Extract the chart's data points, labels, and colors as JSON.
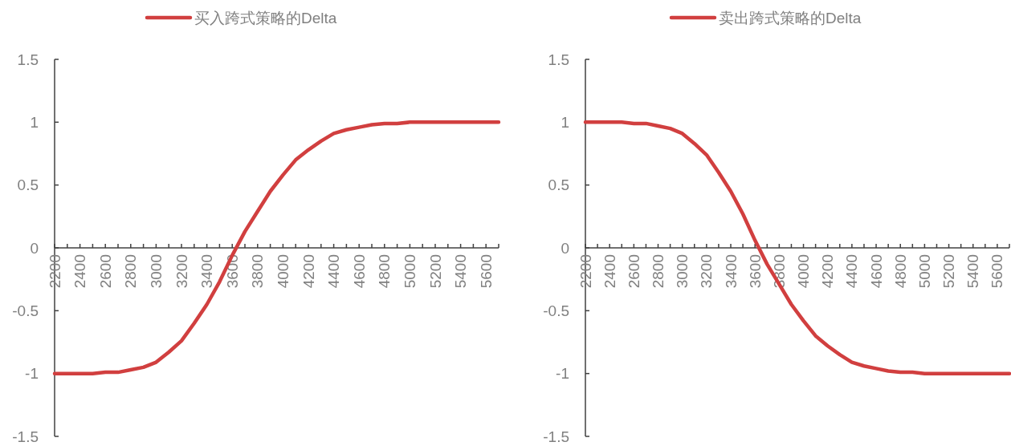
{
  "chart_data": [
    {
      "type": "line",
      "legend": "top",
      "categories": [
        "2200",
        null,
        "2400",
        null,
        "2600",
        null,
        "2800",
        null,
        "3000",
        null,
        "3200",
        null,
        "3400",
        null,
        "3600",
        null,
        "3800",
        null,
        "4000",
        null,
        "4200",
        null,
        "4400",
        null,
        "4600",
        null,
        "4800",
        null,
        "5000",
        null,
        "5200",
        null,
        "5400",
        null,
        "5600",
        null
      ],
      "series": [
        {
          "name": "买入跨式策略的Delta",
          "color": "#d13f3f",
          "values": [
            -1,
            -1,
            -1,
            -1,
            -0.99,
            -0.99,
            -0.97,
            -0.95,
            -0.91,
            -0.83,
            -0.74,
            -0.6,
            -0.45,
            -0.27,
            -0.06,
            0.13,
            0.29,
            0.45,
            0.58,
            0.7,
            0.78,
            0.85,
            0.91,
            0.94,
            0.96,
            0.98,
            0.99,
            0.99,
            1,
            1,
            1,
            1,
            1,
            1,
            1,
            1
          ]
        }
      ],
      "ylim": [
        -1.5,
        1.5
      ],
      "yticks": [
        -1.5,
        -1,
        -0.5,
        0,
        0.5,
        1,
        1.5
      ]
    },
    {
      "type": "line",
      "legend": "top",
      "categories": [
        "2200",
        null,
        "2400",
        null,
        "2600",
        null,
        "2800",
        null,
        "3000",
        null,
        "3200",
        null,
        "3400",
        null,
        "3600",
        null,
        "3800",
        null,
        "4000",
        null,
        "4200",
        null,
        "4400",
        null,
        "4600",
        null,
        "4800",
        null,
        "5000",
        null,
        "5200",
        null,
        "5400",
        null,
        "5600",
        null
      ],
      "series": [
        {
          "name": "卖出跨式策略的Delta",
          "color": "#d13f3f",
          "values": [
            1,
            1,
            1,
            1,
            0.99,
            0.99,
            0.97,
            0.95,
            0.91,
            0.83,
            0.74,
            0.6,
            0.45,
            0.27,
            0.06,
            -0.13,
            -0.29,
            -0.45,
            -0.58,
            -0.7,
            -0.78,
            -0.85,
            -0.91,
            -0.94,
            -0.96,
            -0.98,
            -0.99,
            -0.99,
            -1,
            -1,
            -1,
            -1,
            -1,
            -1,
            -1,
            -1
          ]
        }
      ],
      "ylim": [
        -1.5,
        1.5
      ],
      "yticks": [
        -1.5,
        -1,
        -0.5,
        0,
        0.5,
        1,
        1.5
      ]
    }
  ]
}
